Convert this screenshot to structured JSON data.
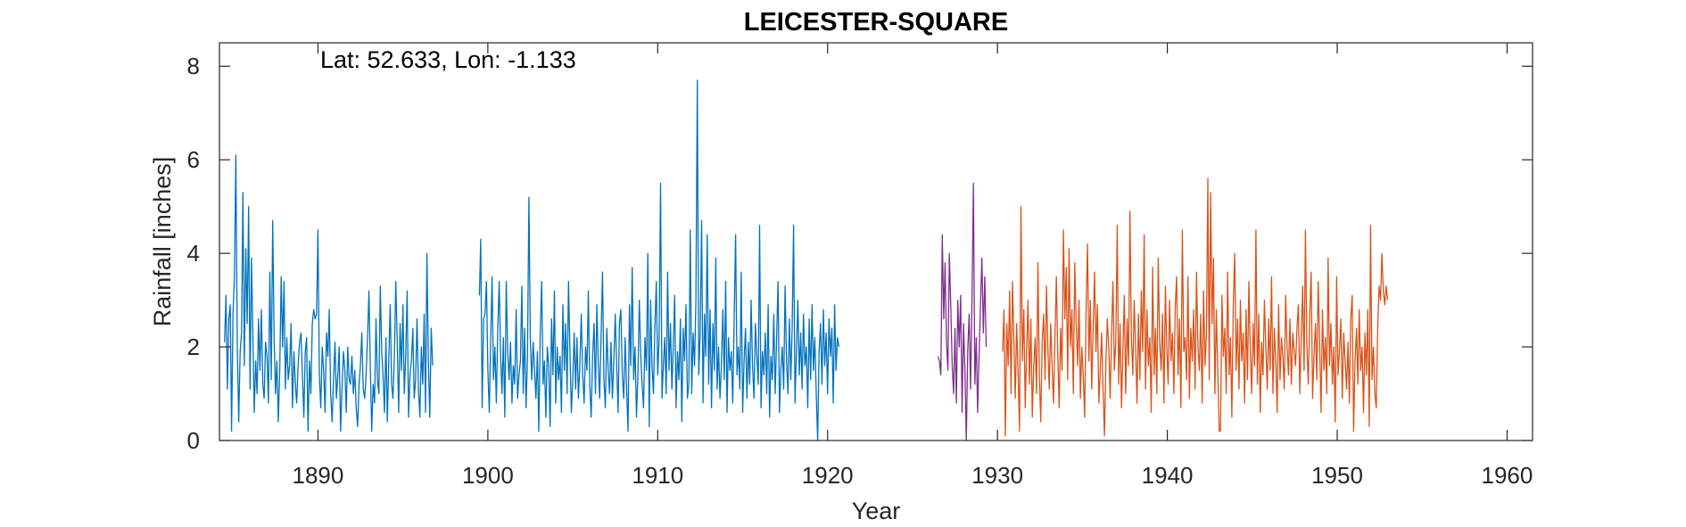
{
  "chart_data": {
    "type": "line",
    "title": "LEICESTER-SQUARE",
    "annotation": "Lat: 52.633, Lon: -1.133",
    "xlabel": "Year",
    "ylabel": "Rainfall [inches]",
    "xlim": [
      1884.2,
      1961.5
    ],
    "ylim": [
      0,
      8.5
    ],
    "xticks": [
      1890,
      1900,
      1910,
      1920,
      1930,
      1940,
      1950,
      1960
    ],
    "yticks": [
      0,
      2,
      4,
      6,
      8
    ],
    "grid": false,
    "colors": {
      "blue": "#0072BD",
      "purple": "#7E2F8E",
      "orange": "#D95319"
    },
    "series": [
      {
        "color": "blue",
        "segments": [
          {
            "start": 1884.5,
            "step": 0.08333,
            "values": [
              2.1,
              3.1,
              1.1,
              2.6,
              2.9,
              0.2,
              2.7,
              3.5,
              6.1,
              2.0,
              0.4,
              1.9,
              2.3,
              5.3,
              1.6,
              4.1,
              2.5,
              5.0,
              1.1,
              3.9,
              2.4,
              0.6,
              1.7,
              1.0,
              2.6,
              1.5,
              2.8,
              1.2,
              0.9,
              2.1,
              1.8,
              0.8,
              3.6,
              1.3,
              4.7,
              2.2,
              1.0,
              1.7,
              0.4,
              1.5,
              3.5,
              2.0,
              3.4,
              1.1,
              2.2,
              1.3,
              1.6,
              2.5,
              0.7,
              1.9,
              1.2,
              0.8,
              1.6,
              2.1,
              2.3,
              1.4,
              0.5,
              1.9,
              2.2,
              0.2,
              1.7,
              1.0,
              2.5,
              2.8,
              2.6,
              2.7,
              4.5,
              1.4,
              0.7,
              2.0,
              1.5,
              0.6,
              2.3,
              1.8,
              2.8,
              1.0,
              0.4,
              1.3,
              2.1,
              0.9,
              1.4,
              2.0,
              0.2,
              1.1,
              1.9,
              1.5,
              0.6,
              2.0,
              1.3,
              1.2,
              1.8,
              1.0,
              1.5,
              0.7,
              0.3,
              1.2,
              1.6,
              2.3,
              1.1,
              0.9,
              1.4,
              2.2,
              3.2,
              1.5,
              0.2,
              1.2,
              0.8,
              2.6,
              1.3,
              1.0,
              3.3,
              1.9,
              1.4,
              0.6,
              2.2,
              0.4,
              1.7,
              2.9,
              1.2,
              0.9,
              1.8,
              3.4,
              2.1,
              0.6,
              2.5,
              1.5,
              2.9,
              1.0,
              1.8,
              3.2,
              0.5,
              1.4,
              1.7,
              2.4,
              0.9,
              1.3,
              2.6,
              1.1,
              0.5,
              2.0,
              1.2,
              2.7,
              0.6,
              4.0,
              1.7,
              0.5,
              2.4,
              1.6
            ]
          },
          {
            "start": 1899.5,
            "step": 0.08333,
            "values": [
              3.1,
              4.3,
              0.7,
              2.6,
              2.7,
              3.4,
              1.5,
              0.6,
              2.1,
              3.5,
              1.3,
              2.0,
              0.8,
              2.4,
              3.4,
              1.8,
              1.0,
              2.2,
              0.5,
              3.4,
              1.9,
              1.3,
              2.1,
              0.8,
              1.6,
              1.2,
              2.8,
              0.9,
              1.4,
              1.7,
              3.3,
              1.0,
              2.4,
              0.7,
              1.8,
              5.2,
              2.2,
              1.3,
              2.1,
              1.5,
              0.9,
              1.9,
              0.2,
              2.3,
              3.4,
              1.2,
              1.7,
              0.5,
              2.0,
              1.6,
              0.3,
              2.6,
              1.4,
              3.2,
              0.8,
              2.0,
              1.3,
              1.8,
              0.6,
              2.9,
              1.5,
              2.5,
              1.0,
              3.4,
              1.9,
              0.6,
              1.3,
              2.3,
              1.1,
              2.2,
              0.9,
              1.6,
              2.7,
              1.4,
              0.8,
              2.0,
              1.5,
              3.2,
              1.2,
              0.5,
              1.8,
              2.5,
              1.0,
              2.9,
              1.7,
              0.9,
              2.2,
              3.6,
              1.3,
              0.7,
              2.4,
              1.5,
              1.0,
              2.1,
              0.9,
              1.7,
              2.7,
              1.6,
              0.6,
              2.5,
              2.8,
              1.4,
              0.9,
              2.2,
              1.1,
              0.2,
              2.9,
              1.6,
              3.7,
              1.3,
              2.0,
              0.5,
              1.4,
              3.0,
              1.8,
              1.2,
              0.7,
              2.2,
              1.5,
              4.0,
              0.3,
              3.0,
              1.6,
              1.0,
              2.4,
              3.4,
              1.4,
              2.2,
              5.5,
              0.9,
              1.6,
              2.2,
              1.0,
              3.6,
              1.5,
              2.5,
              1.1,
              2.0,
              3.1,
              0.7,
              1.9,
              1.3,
              2.6,
              0.4,
              2.4,
              1.7,
              2.9,
              0.9,
              1.2,
              4.5,
              1.0,
              2.3,
              1.6,
              3.0,
              7.7,
              1.4,
              2.3,
              4.7,
              0.8,
              2.7,
              1.8,
              4.4,
              1.2,
              2.8,
              0.7,
              2.5,
              1.5,
              3.9,
              1.1,
              2.0,
              0.9,
              1.6,
              2.8,
              1.3,
              3.4,
              0.6,
              2.2,
              1.5,
              1.9,
              0.8,
              2.6,
              4.4,
              1.4,
              2.0,
              1.1,
              3.6,
              0.6,
              1.7,
              2.4,
              0.9,
              2.1,
              1.2,
              3.0,
              1.6,
              0.9,
              2.5,
              1.8,
              1.2,
              4.6,
              0.7,
              1.9,
              1.4,
              2.3,
              1.0,
              2.9,
              0.5,
              1.8,
              1.3,
              2.7,
              1.0,
              2.2,
              3.4,
              0.6,
              1.5,
              2.0,
              1.1,
              3.3,
              1.7,
              1.0,
              2.6,
              1.3,
              2.4,
              4.6,
              0.8,
              1.9,
              3.0,
              1.4,
              2.3,
              1.1,
              2.7,
              1.6,
              2.0,
              0.7,
              2.6,
              1.3,
              2.9,
              1.5,
              2.2,
              1.0,
              0.0,
              1.9,
              2.5,
              1.2,
              2.8,
              1.6,
              2.3,
              1.0,
              2.6,
              1.8,
              2.4,
              0.8,
              2.9,
              1.5,
              2.2,
              2.0
            ]
          }
        ]
      },
      {
        "color": "purple",
        "segments": [
          {
            "start": 1926.5,
            "step": 0.08333,
            "values": [
              1.8,
              1.7,
              1.4,
              4.4,
              2.6,
              3.8,
              2.1,
              1.5,
              4.0,
              2.9,
              1.6,
              1.0,
              2.4,
              0.8,
              3.0,
              2.0,
              3.1,
              0.6,
              2.5,
              1.5,
              0.0,
              1.9,
              2.7,
              1.1,
              3.0,
              5.5,
              1.2,
              2.2,
              0.6,
              1.8,
              2.9,
              3.9,
              2.3,
              3.5,
              2.0
            ]
          }
        ]
      },
      {
        "color": "orange",
        "segments": [
          {
            "start": 1930.3,
            "step": 0.08333,
            "values": [
              1.9,
              2.8,
              0.1,
              2.5,
              1.6,
              3.2,
              1.0,
              3.4,
              2.1,
              0.9,
              2.5,
              1.4,
              0.2,
              5.0,
              1.7,
              2.8,
              0.7,
              1.9,
              3.0,
              1.2,
              2.6,
              0.5,
              1.6,
              2.2,
              1.0,
              3.8,
              1.4,
              0.4,
              2.1,
              2.7,
              1.3,
              3.3,
              2.0,
              1.1,
              2.5,
              1.6,
              0.8,
              2.2,
              3.5,
              1.8,
              0.7,
              2.4,
              1.5,
              4.5,
              2.6,
              3.7,
              1.3,
              4.1,
              2.0,
              2.8,
              1.0,
              3.8,
              2.5,
              1.6,
              3.0,
              0.9,
              2.0,
              1.4,
              0.5,
              2.8,
              4.2,
              1.7,
              3.0,
              1.1,
              2.4,
              3.6,
              1.9,
              2.9,
              0.8,
              1.5,
              2.3,
              1.1,
              0.1,
              1.7,
              2.6,
              2.0,
              0.9,
              2.3,
              3.4,
              1.5,
              2.1,
              4.6,
              1.2,
              2.5,
              0.7,
              1.9,
              3.1,
              1.0,
              2.6,
              1.6,
              4.9,
              2.2,
              1.4,
              3.0,
              2.0,
              0.8,
              2.7,
              1.3,
              3.2,
              1.9,
              4.4,
              1.1,
              2.8,
              1.6,
              2.2,
              0.6,
              3.7,
              1.4,
              2.4,
              1.0,
              3.9,
              2.1,
              1.5,
              2.7,
              0.8,
              3.3,
              2.0,
              1.2,
              3.0,
              1.7,
              2.3,
              1.0,
              2.9,
              3.5,
              1.4,
              2.6,
              0.7,
              4.5,
              1.9,
              2.2,
              1.3,
              3.5,
              0.9,
              2.4,
              1.7,
              2.8,
              1.1,
              3.6,
              2.0,
              1.5,
              2.7,
              0.8,
              3.2,
              1.6,
              2.3,
              5.6,
              1.3,
              5.3,
              2.5,
              3.9,
              1.0,
              2.8,
              1.5,
              0.2,
              0.2,
              3.1,
              1.8,
              2.4,
              1.0,
              3.6,
              1.4,
              2.2,
              0.5,
              2.9,
              4.0,
              1.5,
              2.6,
              1.1,
              3.0,
              1.7,
              2.3,
              0.8,
              2.8,
              1.3,
              3.4,
              1.9,
              1.0,
              2.5,
              1.6,
              4.5,
              1.2,
              2.7,
              0.6,
              2.1,
              1.4,
              3.0,
              2.0,
              1.1,
              2.6,
              1.5,
              3.5,
              1.0,
              2.4,
              1.7,
              0.6,
              2.9,
              1.3,
              2.2,
              1.8,
              1.1,
              3.1,
              2.0,
              1.4,
              2.6,
              1.2,
              2.3,
              1.9,
              1.6,
              2.4,
              2.9,
              1.0,
              2.2,
              3.3,
              1.5,
              4.5,
              2.0,
              1.2,
              2.7,
              3.6,
              0.9,
              1.8,
              2.5,
              1.3,
              3.4,
              2.1,
              0.6,
              2.8,
              1.5,
              2.2,
              1.0,
              3.9,
              1.6,
              2.5,
              1.2,
              2.0,
              0.4,
              3.5,
              1.4,
              1.9,
              2.6,
              0.9,
              2.3,
              1.7,
              1.1,
              2.1,
              0.8,
              2.6,
              3.1,
              0.2,
              1.7,
              2.4,
              1.2,
              2.8,
              1.5,
              2.0,
              0.6,
              2.3,
              1.4,
              2.8,
              0.3,
              4.6,
              1.3,
              2.0,
              1.0,
              0.7,
              2.4,
              3.3,
              3.0,
              4.0,
              3.2,
              2.9,
              3.3,
              3.0
            ]
          }
        ]
      }
    ]
  }
}
